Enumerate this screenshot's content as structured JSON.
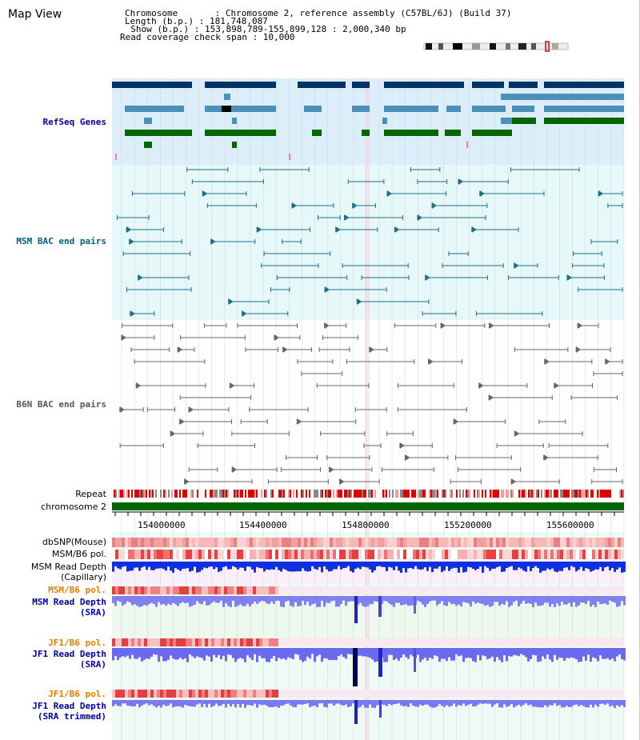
{
  "app": {
    "title": "Map View"
  },
  "header": {
    "chromosome_line": "Chromosome       : Chromosome 2, reference assembly (C57BL/6J) (Build 37)",
    "length_line": "Length (b.p.) : 181,748,087",
    "show_line": "  Show (b.p.) : 153,898,789-155,899,128 : 2,000,340 bp",
    "coverage_line": "Read coverage check span : 10,000"
  },
  "tracks": {
    "refseq": {
      "label": "RefSeq Genes",
      "color": "#00008b"
    },
    "msm_bac": {
      "label": "MSM BAC end pairs",
      "color": "#006080"
    },
    "b6n_bac": {
      "label": "B6N BAC end pairs",
      "color": "#555555"
    },
    "repeat": {
      "label": "Repeat"
    },
    "chromosome": {
      "label": "chromosome 2"
    },
    "dbsnp": {
      "label": "dbSNP(Mouse)"
    },
    "msm_pol1": {
      "label": "MSM/B6 pol."
    },
    "msm_depth_cap": {
      "label": "MSM Read Depth\n(Capillary)"
    },
    "msm_pol2": {
      "label": "MSM/B6 pol.",
      "color": "#e08000"
    },
    "msm_depth_sra": {
      "label": "MSM Read Depth\n(SRA)",
      "color": "#0000aa"
    },
    "jf1_pol1": {
      "label": "JF1/B6 pol.",
      "color": "#e08000"
    },
    "jf1_depth_sra": {
      "label": "JF1 Read Depth\n(SRA)",
      "color": "#0000aa"
    },
    "jf1_pol2": {
      "label": "JF1/B6 pol.",
      "color": "#e08000"
    },
    "jf1_depth_trim": {
      "label": "JF1 Read Depth\n(SRA trimmed)",
      "color": "#0000aa"
    }
  },
  "axis": {
    "ticks": [
      "154000000",
      "154400000",
      "154800000",
      "155200000",
      "155600000"
    ]
  }
}
